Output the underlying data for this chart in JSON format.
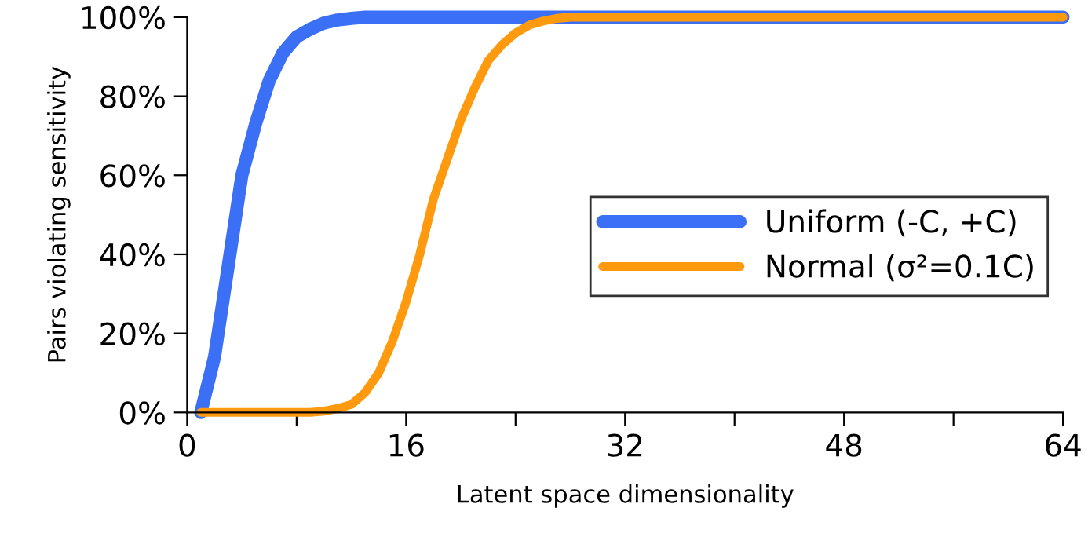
{
  "chart_data": {
    "type": "line",
    "xlabel": "Latent space dimensionality",
    "ylabel": "Pairs violating sensitivity",
    "xlim": [
      0,
      64
    ],
    "xticks": [
      0,
      {
        "value": 8,
        "label": null
      },
      16,
      {
        "value": 24,
        "label": null
      },
      32,
      {
        "value": 40,
        "label": null
      },
      48,
      {
        "value": 56,
        "label": null
      },
      64
    ],
    "ylim": [
      0,
      100
    ],
    "yticks": [
      {
        "value": 0,
        "label": "0%"
      },
      {
        "value": 20,
        "label": "20%"
      },
      {
        "value": 40,
        "label": "40%"
      },
      {
        "value": 60,
        "label": "60%"
      },
      {
        "value": 80,
        "label": "80%"
      },
      {
        "value": 100,
        "label": "100%"
      }
    ],
    "grid": false,
    "legend": "right",
    "marker": "none",
    "line_style": "solid",
    "series": [
      {
        "name": "Uniform (-C, +C)",
        "color": "#3b6ff5",
        "x": [
          1,
          2,
          3,
          4,
          5,
          6,
          7,
          8,
          9,
          10,
          11,
          12,
          13,
          64
        ],
        "values": [
          0,
          14,
          37,
          60,
          73,
          84,
          91,
          95,
          97,
          98.5,
          99.3,
          99.7,
          100,
          100
        ]
      },
      {
        "name": "Normal (σ²=0.1C)",
        "color": "#ff9a0e",
        "x": [
          1,
          9,
          10,
          11,
          12,
          13,
          14,
          15,
          16,
          17,
          18,
          19,
          20,
          21,
          22,
          23,
          24,
          25,
          26,
          27,
          28,
          64
        ],
        "values": [
          0,
          0,
          0.3,
          1,
          2,
          5,
          10,
          18,
          28,
          40,
          54,
          64,
          74,
          82,
          89,
          93,
          96,
          98,
          99,
          99.7,
          100,
          100
        ]
      }
    ]
  }
}
